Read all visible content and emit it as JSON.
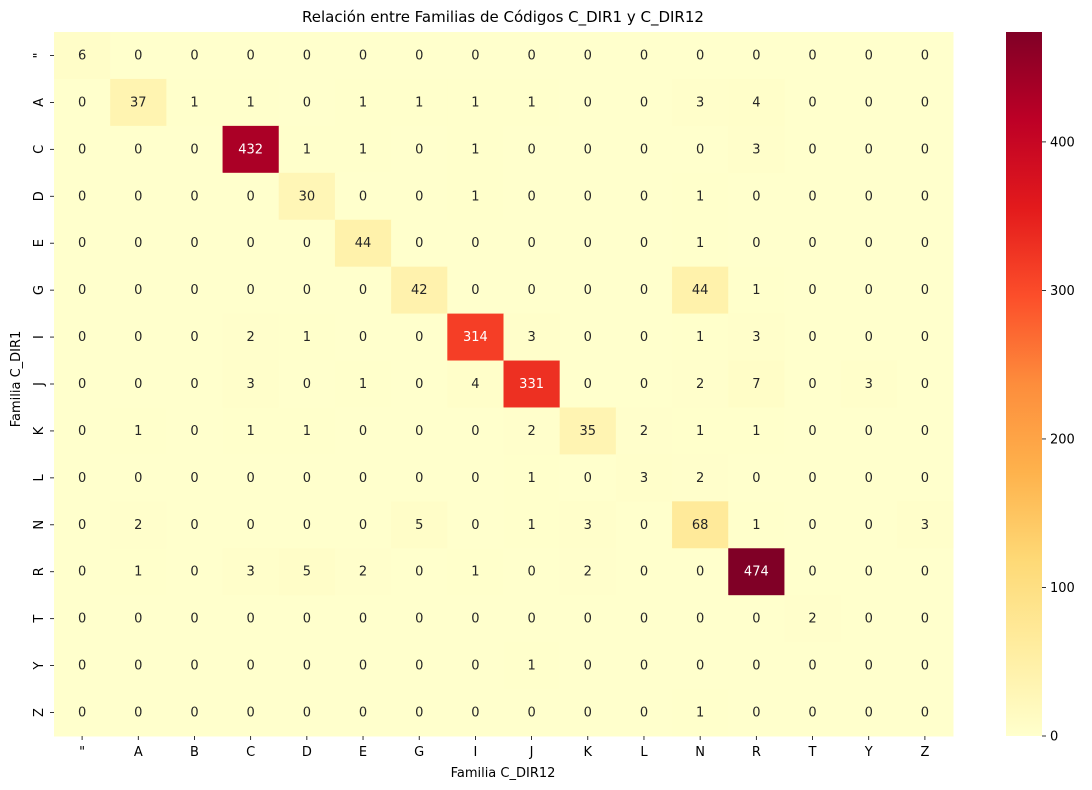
{
  "chart_data": {
    "type": "heatmap",
    "title": "Relación entre Familias de Códigos C_DIR1 y C_DIR12",
    "xlabel": "Familia C_DIR12",
    "ylabel": "Familia C_DIR1",
    "x_categories": [
      "\"",
      "A",
      "B",
      "C",
      "D",
      "E",
      "G",
      "I",
      "J",
      "K",
      "L",
      "N",
      "R",
      "T",
      "Y",
      "Z"
    ],
    "y_categories": [
      "\"",
      "A",
      "C",
      "D",
      "E",
      "G",
      "I",
      "J",
      "K",
      "L",
      "N",
      "R",
      "T",
      "Y",
      "Z"
    ],
    "values": [
      [
        6,
        0,
        0,
        0,
        0,
        0,
        0,
        0,
        0,
        0,
        0,
        0,
        0,
        0,
        0,
        0
      ],
      [
        0,
        37,
        1,
        1,
        0,
        1,
        1,
        1,
        1,
        0,
        0,
        3,
        4,
        0,
        0,
        0
      ],
      [
        0,
        0,
        0,
        432,
        1,
        1,
        0,
        1,
        0,
        0,
        0,
        0,
        3,
        0,
        0,
        0
      ],
      [
        0,
        0,
        0,
        0,
        30,
        0,
        0,
        1,
        0,
        0,
        0,
        1,
        0,
        0,
        0,
        0
      ],
      [
        0,
        0,
        0,
        0,
        0,
        44,
        0,
        0,
        0,
        0,
        0,
        1,
        0,
        0,
        0,
        0
      ],
      [
        0,
        0,
        0,
        0,
        0,
        0,
        42,
        0,
        0,
        0,
        0,
        44,
        1,
        0,
        0,
        0
      ],
      [
        0,
        0,
        0,
        2,
        1,
        0,
        0,
        314,
        3,
        0,
        0,
        1,
        3,
        0,
        0,
        0
      ],
      [
        0,
        0,
        0,
        3,
        0,
        1,
        0,
        4,
        331,
        0,
        0,
        2,
        7,
        0,
        3,
        0
      ],
      [
        0,
        1,
        0,
        1,
        1,
        0,
        0,
        0,
        2,
        35,
        2,
        1,
        1,
        0,
        0,
        0
      ],
      [
        0,
        0,
        0,
        0,
        0,
        0,
        0,
        0,
        1,
        0,
        3,
        2,
        0,
        0,
        0,
        0
      ],
      [
        0,
        2,
        0,
        0,
        0,
        0,
        5,
        0,
        1,
        3,
        0,
        68,
        1,
        0,
        0,
        3
      ],
      [
        0,
        1,
        0,
        3,
        5,
        2,
        0,
        1,
        0,
        2,
        0,
        0,
        474,
        0,
        0,
        0
      ],
      [
        0,
        0,
        0,
        0,
        0,
        0,
        0,
        0,
        0,
        0,
        0,
        0,
        0,
        2,
        0,
        0
      ],
      [
        0,
        0,
        0,
        0,
        0,
        0,
        0,
        0,
        1,
        0,
        0,
        0,
        0,
        0,
        0,
        0
      ],
      [
        0,
        0,
        0,
        0,
        0,
        0,
        0,
        0,
        0,
        0,
        0,
        1,
        0,
        0,
        0,
        0
      ]
    ],
    "colorscale": "YlOrRd",
    "vmin": 0,
    "vmax": 474,
    "colorbar_ticks": [
      0,
      100,
      200,
      300,
      400
    ],
    "annotated": true,
    "grid": false
  }
}
